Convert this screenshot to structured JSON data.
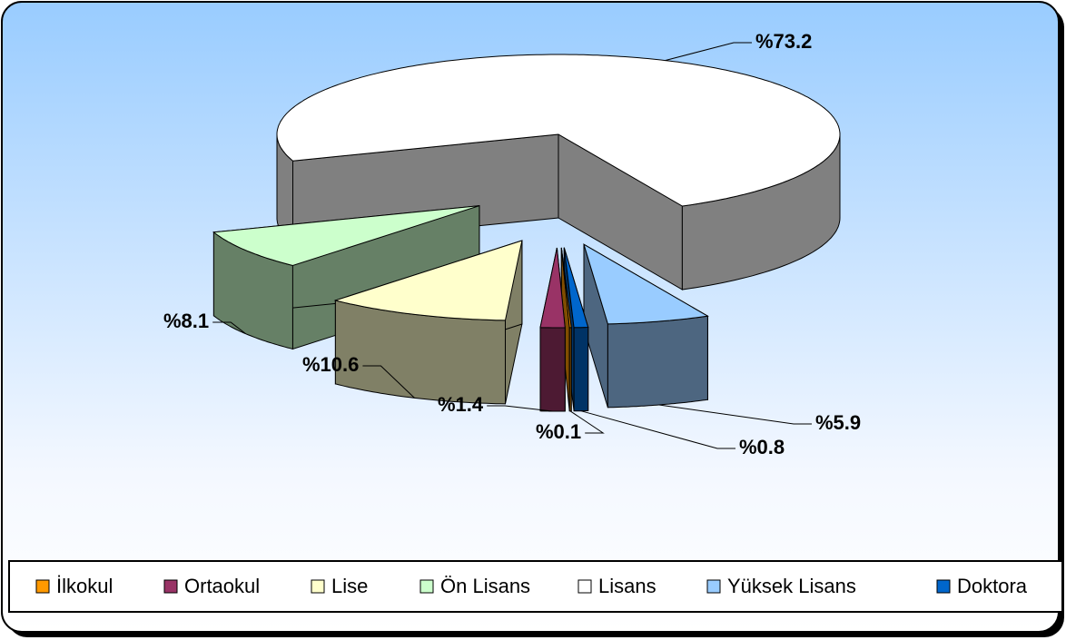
{
  "chart_data": {
    "type": "pie3d",
    "categories": [
      "İlkokul",
      "Ortaokul",
      "Lise",
      "Ön Lisans",
      "Lisans",
      "Yüksek Lisans",
      "Doktora"
    ],
    "values": [
      0.1,
      1.4,
      10.6,
      8.1,
      73.2,
      5.9,
      0.8
    ],
    "value_labels": [
      "%0.1",
      "%1.4",
      "%10.6",
      "%8.1",
      "%73.2",
      "%5.9",
      "%0.8"
    ],
    "colors": [
      "#FF9900",
      "#993366",
      "#FFFFCC",
      "#CCFFCC",
      "#FFFFFF",
      "#99CCFF",
      "#0066CC"
    ],
    "legend": "bottom"
  }
}
